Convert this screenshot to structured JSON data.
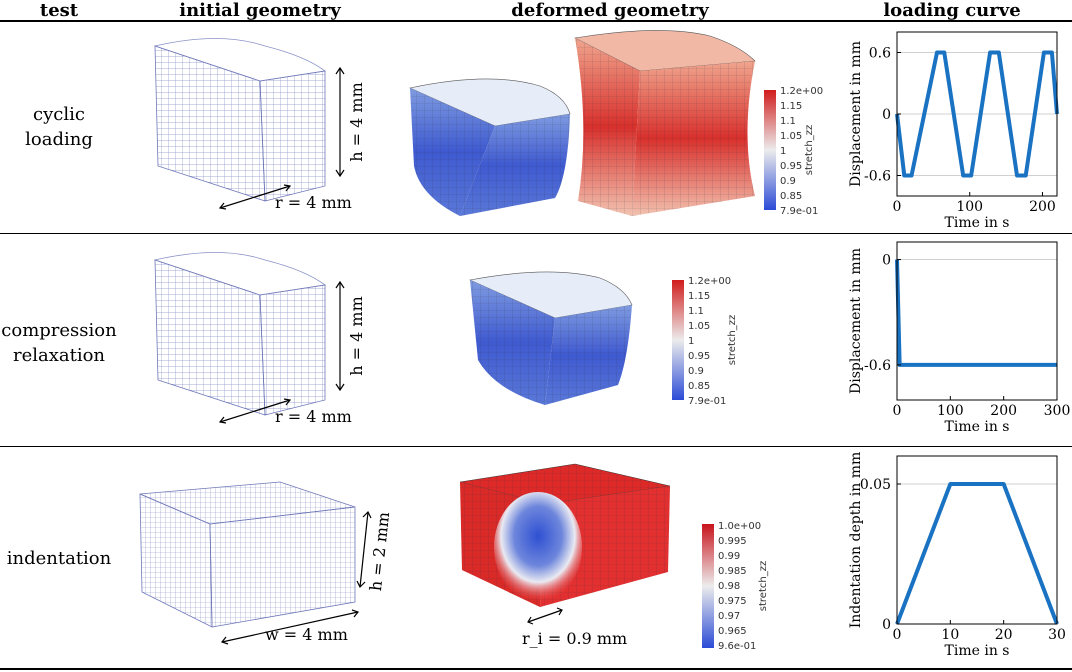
{
  "headers": {
    "test": "test",
    "initial": "initial geometry",
    "deformed": "deformed geometry",
    "loading": "loading curve"
  },
  "rows": [
    {
      "label_lines": [
        "cyclic",
        "loading"
      ],
      "r_label": "r = 4 mm",
      "h_label": "h = 4 mm",
      "colorbar": {
        "title": "stretch_zz",
        "ticks": [
          "1.2e+00",
          "1.15",
          "1.1",
          "1.05",
          "1",
          "0.95",
          "0.9",
          "0.85",
          "7.9e-01"
        ]
      }
    },
    {
      "label_lines": [
        "compression",
        "relaxation"
      ],
      "r_label": "r = 4 mm",
      "h_label": "h = 4 mm",
      "colorbar": {
        "title": "stretch_zz",
        "ticks": [
          "1.2e+00",
          "1.15",
          "1.1",
          "1.05",
          "1",
          "0.95",
          "0.9",
          "0.85",
          "7.9e-01"
        ]
      }
    },
    {
      "label_lines": [
        "indentation"
      ],
      "w_label": "w = 4 mm",
      "h_label": "h = 2 mm",
      "ri_label": "r_i = 0.9 mm",
      "colorbar": {
        "title": "stretch_zz",
        "ticks": [
          "1.0e+00",
          "0.995",
          "0.99",
          "0.985",
          "0.98",
          "0.975",
          "0.97",
          "0.965",
          "9.6e-01"
        ]
      }
    }
  ],
  "chart_data": [
    {
      "type": "line",
      "title": "",
      "xlabel": "Time in s",
      "ylabel": "Displacement in mm",
      "xlim": [
        0,
        220
      ],
      "ylim": [
        -0.8,
        0.8
      ],
      "xticks": [
        0,
        100,
        200
      ],
      "yticks": [
        -0.6,
        0,
        0.6
      ],
      "ytick_labels": [
        "-0.6",
        "0",
        "0.6"
      ],
      "grid_y": [
        -0.6,
        0,
        0.6
      ],
      "x": [
        0,
        10,
        15,
        20,
        55,
        60,
        65,
        91,
        97,
        102,
        128,
        134,
        140,
        165,
        171,
        177,
        202,
        208,
        213,
        220
      ],
      "y": [
        0,
        -0.6,
        -0.6,
        -0.6,
        0.6,
        0.6,
        0.6,
        -0.6,
        -0.6,
        -0.6,
        0.6,
        0.6,
        0.6,
        -0.6,
        -0.6,
        -0.6,
        0.6,
        0.6,
        0.6,
        0
      ]
    },
    {
      "type": "line",
      "title": "",
      "xlabel": "Time in s",
      "ylabel": "Displacement in mm",
      "xlim": [
        0,
        300
      ],
      "ylim": [
        -0.8,
        0.1
      ],
      "xticks": [
        0,
        100,
        200,
        300
      ],
      "yticks": [
        -0.6,
        0
      ],
      "ytick_labels": [
        "-0.6",
        "0"
      ],
      "grid_y": [
        -0.6,
        0
      ],
      "x": [
        0,
        5,
        300
      ],
      "y": [
        0,
        -0.6,
        -0.6
      ]
    },
    {
      "type": "line",
      "title": "",
      "xlabel": "Time in s",
      "ylabel": "Indentation depth in mm",
      "xlim": [
        0,
        30
      ],
      "ylim": [
        0,
        0.06
      ],
      "xticks": [
        0,
        10,
        20,
        30
      ],
      "yticks": [
        0,
        0.05
      ],
      "ytick_labels": [
        "0",
        "0.05"
      ],
      "grid_y": [
        0.05
      ],
      "x": [
        0,
        10,
        20,
        30
      ],
      "y": [
        0,
        0.05,
        0.05,
        0
      ]
    }
  ]
}
